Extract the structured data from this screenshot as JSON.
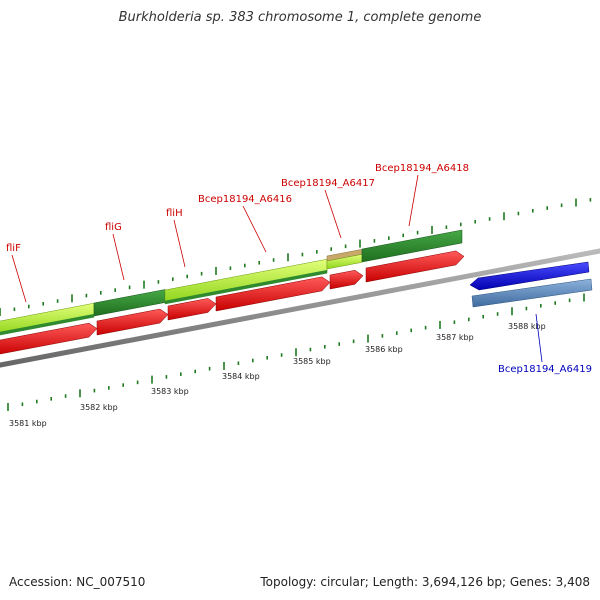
{
  "title": "Burkholderia sp. 383 chromosome 1, complete genome",
  "footer": {
    "accession": "Accession: NC_007510",
    "topology": "Topology: circular; Length: 3,694,126 bp; Genes: 3,408"
  },
  "colors": {
    "forward_gene_label": "#cc0000",
    "reverse_gene_label": "#0000bb",
    "red_arrow": "#ee1111",
    "blue_arrow": "#1111dd",
    "steel_blue_bar": "#5b84b5",
    "green_bar": "#2f8a2f",
    "light_green_bar": "#b4f03c",
    "tick_green": "#1f7a1f",
    "backbone_gray": "#888888"
  },
  "kbp_ticks": [
    "3581 kbp",
    "3582 kbp",
    "3583 kbp",
    "3584 kbp",
    "3585 kbp",
    "3586 kbp",
    "3587 kbp",
    "3588 kbp"
  ],
  "gene_labels": [
    {
      "name": "fliF",
      "strand": "forward"
    },
    {
      "name": "fliG",
      "strand": "forward"
    },
    {
      "name": "fliH",
      "strand": "forward"
    },
    {
      "name": "Bcep18194_A6416",
      "strand": "forward"
    },
    {
      "name": "Bcep18194_A6417",
      "strand": "forward"
    },
    {
      "name": "Bcep18194_A6418",
      "strand": "forward"
    },
    {
      "name": "Bcep18194_A6419",
      "strand": "reverse"
    }
  ]
}
